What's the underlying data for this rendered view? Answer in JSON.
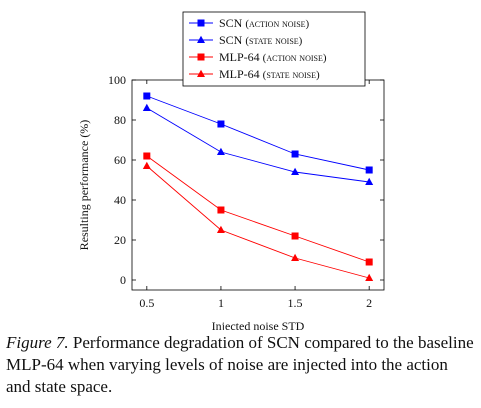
{
  "chart_data": {
    "type": "line",
    "x": [
      0.5,
      1,
      1.5,
      2
    ],
    "x_tick_labels": [
      "0.5",
      "1",
      "1.5",
      "2"
    ],
    "y_ticks": [
      0,
      20,
      40,
      60,
      80,
      100
    ],
    "xlim": [
      0.4,
      2.1
    ],
    "ylim": [
      -5,
      100
    ],
    "xlabel": "Injected noise STD",
    "ylabel": "Resulting performance (%)",
    "grid": false,
    "legend_position": "top-center",
    "series": [
      {
        "name_main": "SCN",
        "name_sub": "(action noise)",
        "color": "#0000ff",
        "marker": "square",
        "values": [
          92,
          78,
          63,
          55
        ]
      },
      {
        "name_main": "SCN",
        "name_sub": "(state noise)",
        "color": "#0000ff",
        "marker": "triangle",
        "values": [
          86,
          64,
          54,
          49
        ]
      },
      {
        "name_main": "MLP-64",
        "name_sub": "(action noise)",
        "color": "#ff0000",
        "marker": "square",
        "values": [
          62,
          35,
          22,
          9
        ]
      },
      {
        "name_main": "MLP-64",
        "name_sub": "(state noise)",
        "color": "#ff0000",
        "marker": "triangle",
        "values": [
          57,
          25,
          11,
          1
        ]
      }
    ]
  },
  "caption": {
    "figure_label": "Figure 7.",
    "text": "Performance degradation of SCN compared to the baseline MLP-64 when varying levels of noise are injected into the action and state space."
  }
}
